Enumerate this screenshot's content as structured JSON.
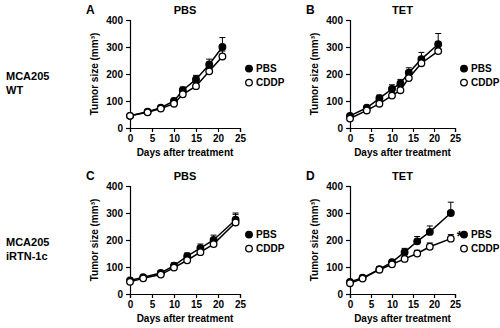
{
  "chart_data": [
    {
      "type": "line",
      "panel_label": "A",
      "row_label": [
        "MCA205",
        "WT"
      ],
      "title": "PBS",
      "x_label": "Days after treatment",
      "y_label": "Tumor size (mm³)",
      "x": [
        0,
        4,
        7,
        10,
        12,
        15,
        18,
        21
      ],
      "series": [
        {
          "name": "PBS",
          "color": "#000000",
          "marker": "circle",
          "values": [
            45,
            60,
            75,
            100,
            140,
            180,
            235,
            300
          ],
          "errors": [
            5,
            6,
            8,
            10,
            12,
            15,
            20,
            35
          ]
        },
        {
          "name": "CDDP",
          "color": "#000000",
          "marker": "open-circle",
          "values": [
            45,
            58,
            72,
            90,
            125,
            155,
            210,
            265
          ],
          "errors": [
            5,
            6,
            7,
            9,
            10,
            12,
            15,
            20
          ]
        }
      ],
      "xlim": [
        0,
        25
      ],
      "xticks": [
        0,
        5,
        10,
        15,
        20,
        25
      ],
      "ylim": [
        0,
        400
      ],
      "yticks": [
        0,
        100,
        200,
        300,
        400
      ],
      "legend": "right"
    },
    {
      "type": "line",
      "panel_label": "B",
      "title": "TET",
      "x_label": "Days after treatment",
      "y_label": "Tumor size (mm³)",
      "x": [
        0,
        4,
        7,
        10,
        12,
        14,
        17,
        21
      ],
      "series": [
        {
          "name": "PBS",
          "color": "#000000",
          "marker": "circle",
          "values": [
            45,
            75,
            110,
            145,
            165,
            205,
            255,
            310
          ],
          "errors": [
            6,
            8,
            12,
            15,
            15,
            18,
            25,
            40
          ]
        },
        {
          "name": "CDDP",
          "color": "#000000",
          "marker": "open-circle",
          "values": [
            35,
            65,
            90,
            120,
            140,
            185,
            240,
            285
          ],
          "errors": [
            5,
            7,
            9,
            12,
            14,
            16,
            22,
            30
          ]
        }
      ],
      "xlim": [
        0,
        25
      ],
      "xticks": [
        0,
        5,
        10,
        15,
        20,
        25
      ],
      "ylim": [
        0,
        400
      ],
      "yticks": [
        0,
        100,
        200,
        300,
        400
      ],
      "legend": "right"
    },
    {
      "type": "line",
      "panel_label": "C",
      "row_label": [
        "MCA205",
        "iRTN-1c"
      ],
      "title": "PBS",
      "x_label": "Days after treatment",
      "y_label": "Tumor size (mm³)",
      "x": [
        0,
        3,
        7,
        10,
        13,
        16,
        19,
        24
      ],
      "series": [
        {
          "name": "PBS",
          "color": "#000000",
          "marker": "circle",
          "values": [
            50,
            62,
            78,
            105,
            140,
            170,
            200,
            275
          ],
          "errors": [
            5,
            6,
            8,
            10,
            12,
            15,
            18,
            25
          ]
        },
        {
          "name": "CDDP",
          "color": "#000000",
          "marker": "open-circle",
          "values": [
            45,
            58,
            72,
            98,
            125,
            155,
            185,
            265
          ],
          "errors": [
            5,
            6,
            7,
            9,
            11,
            14,
            16,
            30
          ]
        }
      ],
      "xlim": [
        0,
        25
      ],
      "xticks": [
        0,
        5,
        10,
        15,
        20,
        25
      ],
      "ylim": [
        0,
        400
      ],
      "yticks": [
        0,
        100,
        200,
        300,
        400
      ],
      "legend": "right"
    },
    {
      "type": "line",
      "panel_label": "D",
      "title": "TET",
      "annotation": "*",
      "x_label": "Days after treatment",
      "y_label": "Tumor size (mm³)",
      "x": [
        0,
        3,
        7,
        10,
        13,
        16,
        19,
        24
      ],
      "series": [
        {
          "name": "PBS",
          "color": "#000000",
          "marker": "circle",
          "values": [
            45,
            60,
            92,
            118,
            155,
            195,
            230,
            300
          ],
          "errors": [
            5,
            6,
            8,
            10,
            14,
            18,
            22,
            40
          ]
        },
        {
          "name": "CDDP",
          "color": "#000000",
          "marker": "open-circle",
          "values": [
            40,
            57,
            90,
            110,
            130,
            150,
            175,
            205
          ],
          "errors": [
            5,
            6,
            8,
            9,
            10,
            12,
            14,
            15
          ]
        }
      ],
      "xlim": [
        0,
        25
      ],
      "xticks": [
        0,
        5,
        10,
        15,
        20,
        25
      ],
      "ylim": [
        0,
        400
      ],
      "yticks": [
        0,
        100,
        200,
        300,
        400
      ],
      "legend": "right"
    }
  ]
}
